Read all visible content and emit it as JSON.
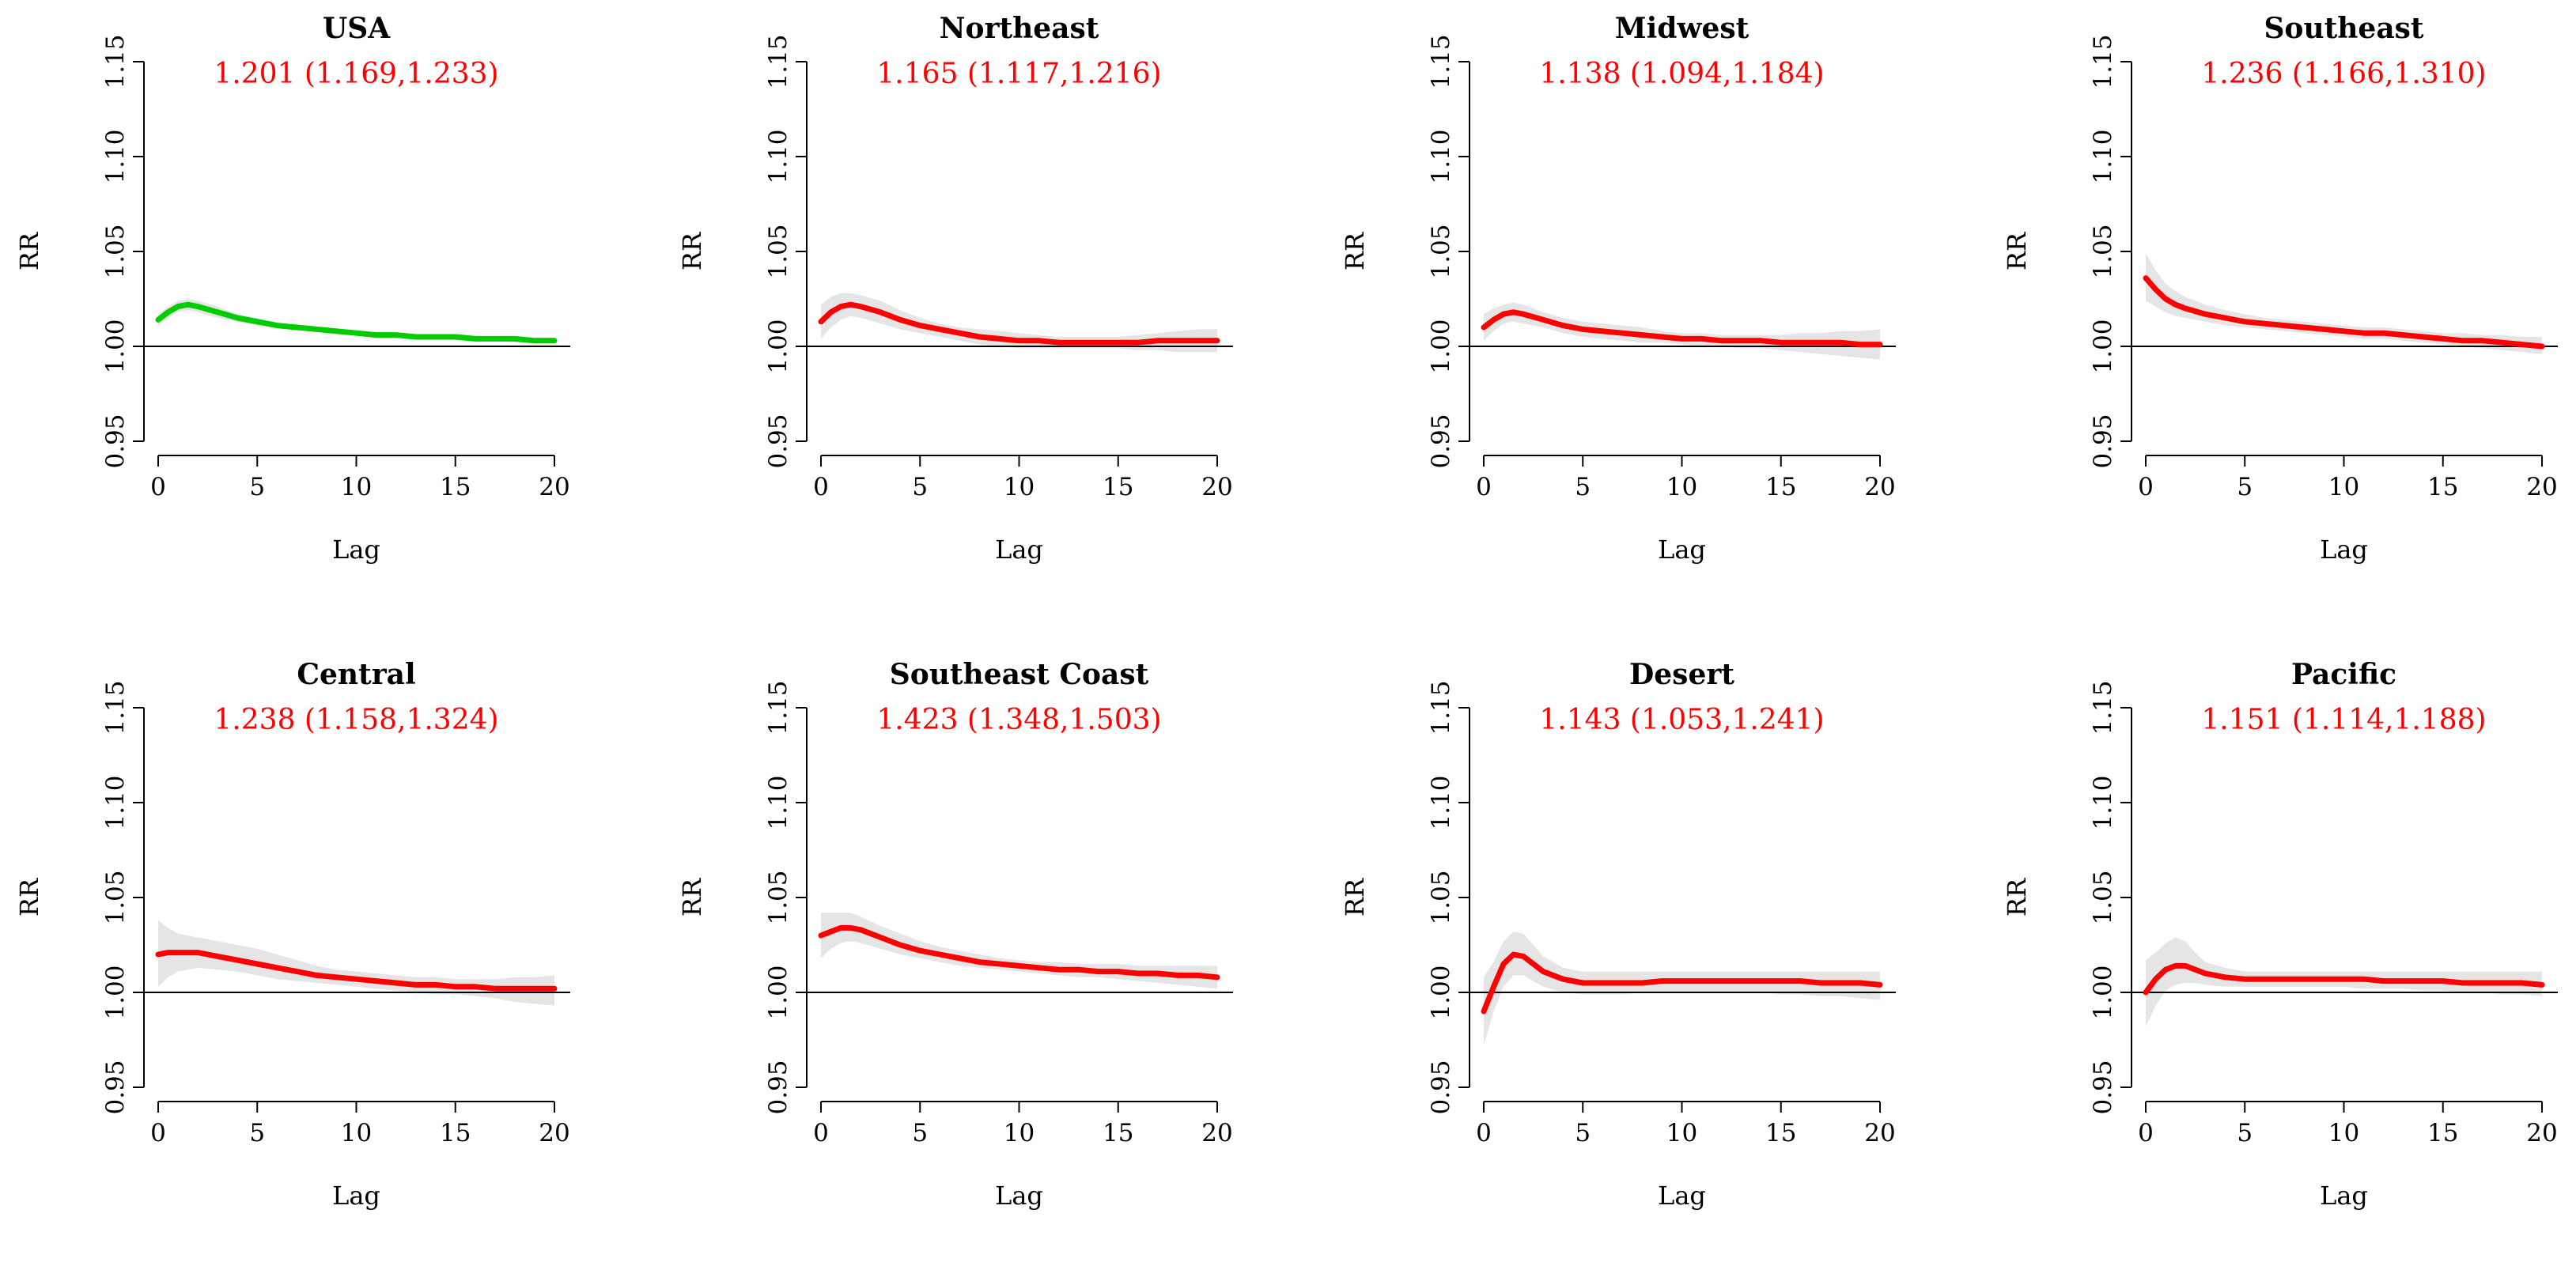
{
  "figure": {
    "background": "#ffffff",
    "band_color": "#e5e5e5",
    "stat_color": "#ff0000",
    "axis_color": "#000000"
  },
  "chart_data": [
    {
      "type": "line",
      "title": "USA",
      "annotation": "1.201 (1.169,1.233)",
      "xlabel": "Lag",
      "ylabel": "RR",
      "xlim": [
        0,
        20
      ],
      "ylim": [
        0.95,
        1.15
      ],
      "xticks": [
        "0",
        "5",
        "10",
        "15",
        "20"
      ],
      "yticks": [
        "0.95",
        "1.00",
        "1.05",
        "1.10",
        "1.15"
      ],
      "reference_line": 1.0,
      "series_color": "#00cc00",
      "x": [
        0,
        0.5,
        1,
        1.5,
        2,
        3,
        4,
        5,
        6,
        7,
        8,
        9,
        10,
        11,
        12,
        13,
        14,
        15,
        16,
        17,
        18,
        19,
        20
      ],
      "y": [
        1.014,
        1.018,
        1.021,
        1.022,
        1.021,
        1.018,
        1.015,
        1.013,
        1.011,
        1.01,
        1.009,
        1.008,
        1.007,
        1.006,
        1.006,
        1.005,
        1.005,
        1.005,
        1.004,
        1.004,
        1.004,
        1.003,
        1.003
      ],
      "lower": [
        1.011,
        1.015,
        1.018,
        1.019,
        1.018,
        1.015,
        1.013,
        1.011,
        1.01,
        1.009,
        1.008,
        1.007,
        1.006,
        1.005,
        1.005,
        1.004,
        1.004,
        1.004,
        1.003,
        1.003,
        1.002,
        1.002,
        1.002
      ],
      "upper": [
        1.017,
        1.021,
        1.024,
        1.025,
        1.024,
        1.021,
        1.017,
        1.015,
        1.012,
        1.011,
        1.01,
        1.009,
        1.008,
        1.007,
        1.007,
        1.006,
        1.006,
        1.006,
        1.005,
        1.005,
        1.005,
        1.004,
        1.004
      ]
    },
    {
      "type": "line",
      "title": "Northeast",
      "annotation": "1.165 (1.117,1.216)",
      "xlabel": "Lag",
      "ylabel": "RR",
      "xlim": [
        0,
        20
      ],
      "ylim": [
        0.95,
        1.15
      ],
      "xticks": [
        "0",
        "5",
        "10",
        "15",
        "20"
      ],
      "yticks": [
        "0.95",
        "1.00",
        "1.05",
        "1.10",
        "1.15"
      ],
      "reference_line": 1.0,
      "series_color": "#ff0000",
      "x": [
        0,
        0.5,
        1,
        1.5,
        2,
        3,
        4,
        5,
        6,
        7,
        8,
        9,
        10,
        11,
        12,
        13,
        14,
        15,
        16,
        17,
        18,
        19,
        20
      ],
      "y": [
        1.013,
        1.018,
        1.021,
        1.022,
        1.021,
        1.018,
        1.014,
        1.011,
        1.009,
        1.007,
        1.005,
        1.004,
        1.003,
        1.003,
        1.002,
        1.002,
        1.002,
        1.002,
        1.002,
        1.003,
        1.003,
        1.003,
        1.003
      ],
      "lower": [
        1.004,
        1.01,
        1.014,
        1.016,
        1.015,
        1.012,
        1.009,
        1.007,
        1.005,
        1.003,
        1.001,
        1.0,
        0.999,
        0.999,
        0.999,
        0.999,
        0.999,
        0.999,
        0.998,
        0.998,
        0.997,
        0.997,
        0.997
      ],
      "upper": [
        1.022,
        1.026,
        1.028,
        1.028,
        1.027,
        1.024,
        1.019,
        1.015,
        1.012,
        1.01,
        1.009,
        1.008,
        1.007,
        1.006,
        1.005,
        1.005,
        1.005,
        1.005,
        1.006,
        1.007,
        1.008,
        1.009,
        1.009
      ]
    },
    {
      "type": "line",
      "title": "Midwest",
      "annotation": "1.138 (1.094,1.184)",
      "xlabel": "Lag",
      "ylabel": "RR",
      "xlim": [
        0,
        20
      ],
      "ylim": [
        0.95,
        1.15
      ],
      "xticks": [
        "0",
        "5",
        "10",
        "15",
        "20"
      ],
      "yticks": [
        "0.95",
        "1.00",
        "1.05",
        "1.10",
        "1.15"
      ],
      "reference_line": 1.0,
      "series_color": "#ff0000",
      "x": [
        0,
        0.5,
        1,
        1.5,
        2,
        3,
        4,
        5,
        6,
        7,
        8,
        9,
        10,
        11,
        12,
        13,
        14,
        15,
        16,
        17,
        18,
        19,
        20
      ],
      "y": [
        1.01,
        1.014,
        1.017,
        1.018,
        1.017,
        1.014,
        1.011,
        1.009,
        1.008,
        1.007,
        1.006,
        1.005,
        1.004,
        1.004,
        1.003,
        1.003,
        1.003,
        1.002,
        1.002,
        1.002,
        1.002,
        1.001,
        1.001
      ],
      "lower": [
        1.003,
        1.008,
        1.012,
        1.013,
        1.012,
        1.01,
        1.007,
        1.005,
        1.004,
        1.003,
        1.002,
        1.002,
        1.001,
        1.0,
        1.0,
        0.999,
        0.999,
        0.998,
        0.997,
        0.996,
        0.995,
        0.994,
        0.993
      ],
      "upper": [
        1.017,
        1.02,
        1.022,
        1.023,
        1.022,
        1.018,
        1.015,
        1.013,
        1.012,
        1.011,
        1.01,
        1.008,
        1.007,
        1.007,
        1.006,
        1.006,
        1.006,
        1.006,
        1.007,
        1.007,
        1.008,
        1.008,
        1.009
      ]
    },
    {
      "type": "line",
      "title": "Southeast",
      "annotation": "1.236 (1.166,1.310)",
      "xlabel": "Lag",
      "ylabel": "RR",
      "xlim": [
        0,
        20
      ],
      "ylim": [
        0.95,
        1.15
      ],
      "xticks": [
        "0",
        "5",
        "10",
        "15",
        "20"
      ],
      "yticks": [
        "0.95",
        "1.00",
        "1.05",
        "1.10",
        "1.15"
      ],
      "reference_line": 1.0,
      "series_color": "#ff0000",
      "x": [
        0,
        0.5,
        1,
        1.5,
        2,
        3,
        4,
        5,
        6,
        7,
        8,
        9,
        10,
        11,
        12,
        13,
        14,
        15,
        16,
        17,
        18,
        19,
        20
      ],
      "y": [
        1.036,
        1.03,
        1.025,
        1.022,
        1.02,
        1.017,
        1.015,
        1.013,
        1.012,
        1.011,
        1.01,
        1.009,
        1.008,
        1.007,
        1.007,
        1.006,
        1.005,
        1.004,
        1.003,
        1.003,
        1.002,
        1.001,
        1.0
      ],
      "lower": [
        1.024,
        1.021,
        1.018,
        1.016,
        1.015,
        1.013,
        1.011,
        1.01,
        1.009,
        1.008,
        1.007,
        1.006,
        1.005,
        1.004,
        1.004,
        1.003,
        1.002,
        1.001,
        1.0,
        0.999,
        0.998,
        0.997,
        0.996
      ],
      "upper": [
        1.049,
        1.04,
        1.033,
        1.029,
        1.026,
        1.022,
        1.019,
        1.017,
        1.015,
        1.014,
        1.013,
        1.012,
        1.011,
        1.01,
        1.01,
        1.009,
        1.008,
        1.007,
        1.007,
        1.006,
        1.006,
        1.005,
        1.005
      ]
    },
    {
      "type": "line",
      "title": "Central",
      "annotation": "1.238 (1.158,1.324)",
      "xlabel": "Lag",
      "ylabel": "RR",
      "xlim": [
        0,
        20
      ],
      "ylim": [
        0.95,
        1.15
      ],
      "xticks": [
        "0",
        "5",
        "10",
        "15",
        "20"
      ],
      "yticks": [
        "0.95",
        "1.00",
        "1.05",
        "1.10",
        "1.15"
      ],
      "reference_line": 1.0,
      "series_color": "#ff0000",
      "x": [
        0,
        0.5,
        1,
        1.5,
        2,
        3,
        4,
        5,
        6,
        7,
        8,
        9,
        10,
        11,
        12,
        13,
        14,
        15,
        16,
        17,
        18,
        19,
        20
      ],
      "y": [
        1.02,
        1.021,
        1.021,
        1.021,
        1.021,
        1.019,
        1.017,
        1.015,
        1.013,
        1.011,
        1.009,
        1.008,
        1.007,
        1.006,
        1.005,
        1.004,
        1.004,
        1.003,
        1.003,
        1.002,
        1.002,
        1.002,
        1.002
      ],
      "lower": [
        1.003,
        1.008,
        1.011,
        1.012,
        1.013,
        1.012,
        1.011,
        1.009,
        1.007,
        1.006,
        1.005,
        1.004,
        1.003,
        1.002,
        1.001,
        1.0,
        0.999,
        0.999,
        0.998,
        0.997,
        0.995,
        0.994,
        0.993
      ],
      "upper": [
        1.038,
        1.034,
        1.031,
        1.03,
        1.029,
        1.027,
        1.025,
        1.023,
        1.02,
        1.017,
        1.014,
        1.012,
        1.011,
        1.01,
        1.009,
        1.008,
        1.008,
        1.007,
        1.007,
        1.007,
        1.008,
        1.008,
        1.009
      ]
    },
    {
      "type": "line",
      "title": "Southeast Coast",
      "annotation": "1.423 (1.348,1.503)",
      "xlabel": "Lag",
      "ylabel": "RR",
      "xlim": [
        0,
        20
      ],
      "ylim": [
        0.95,
        1.15
      ],
      "xticks": [
        "0",
        "5",
        "10",
        "15",
        "20"
      ],
      "yticks": [
        "0.95",
        "1.00",
        "1.05",
        "1.10",
        "1.15"
      ],
      "reference_line": 1.0,
      "series_color": "#ff0000",
      "x": [
        0,
        0.5,
        1,
        1.5,
        2,
        3,
        4,
        5,
        6,
        7,
        8,
        9,
        10,
        11,
        12,
        13,
        14,
        15,
        16,
        17,
        18,
        19,
        20
      ],
      "y": [
        1.03,
        1.032,
        1.034,
        1.034,
        1.033,
        1.029,
        1.025,
        1.022,
        1.02,
        1.018,
        1.016,
        1.015,
        1.014,
        1.013,
        1.012,
        1.012,
        1.011,
        1.011,
        1.01,
        1.01,
        1.009,
        1.009,
        1.008
      ],
      "lower": [
        1.018,
        1.023,
        1.026,
        1.027,
        1.026,
        1.023,
        1.02,
        1.018,
        1.016,
        1.014,
        1.013,
        1.012,
        1.011,
        1.01,
        1.009,
        1.008,
        1.008,
        1.007,
        1.006,
        1.005,
        1.004,
        1.003,
        1.002
      ],
      "upper": [
        1.042,
        1.042,
        1.042,
        1.042,
        1.04,
        1.035,
        1.031,
        1.027,
        1.024,
        1.022,
        1.02,
        1.018,
        1.017,
        1.016,
        1.016,
        1.015,
        1.015,
        1.015,
        1.014,
        1.014,
        1.014,
        1.014,
        1.014
      ]
    },
    {
      "type": "line",
      "title": "Desert",
      "annotation": "1.143 (1.053,1.241)",
      "xlabel": "Lag",
      "ylabel": "RR",
      "xlim": [
        0,
        20
      ],
      "ylim": [
        0.95,
        1.15
      ],
      "xticks": [
        "0",
        "5",
        "10",
        "15",
        "20"
      ],
      "yticks": [
        "0.95",
        "1.00",
        "1.05",
        "1.10",
        "1.15"
      ],
      "reference_line": 1.0,
      "series_color": "#ff0000",
      "x": [
        0,
        0.5,
        1,
        1.5,
        2,
        2.5,
        3,
        4,
        5,
        6,
        7,
        8,
        9,
        10,
        11,
        12,
        13,
        14,
        15,
        16,
        17,
        18,
        19,
        20
      ],
      "y": [
        0.99,
        1.003,
        1.015,
        1.02,
        1.019,
        1.015,
        1.011,
        1.007,
        1.005,
        1.005,
        1.005,
        1.005,
        1.006,
        1.006,
        1.006,
        1.006,
        1.006,
        1.006,
        1.006,
        1.006,
        1.005,
        1.005,
        1.005,
        1.004
      ],
      "lower": [
        0.972,
        0.99,
        1.003,
        1.009,
        1.009,
        1.006,
        1.003,
        1.0,
        0.999,
        0.999,
        0.999,
        1.0,
        1.0,
        1.0,
        1.0,
        1.0,
        1.0,
        1.0,
        0.999,
        0.999,
        0.998,
        0.998,
        0.997,
        0.996
      ],
      "upper": [
        1.008,
        1.016,
        1.027,
        1.032,
        1.031,
        1.025,
        1.019,
        1.013,
        1.011,
        1.011,
        1.011,
        1.011,
        1.011,
        1.011,
        1.011,
        1.011,
        1.011,
        1.011,
        1.011,
        1.011,
        1.011,
        1.011,
        1.011,
        1.011
      ]
    },
    {
      "type": "line",
      "title": "Pacific",
      "annotation": "1.151 (1.114,1.188)",
      "xlabel": "Lag",
      "ylabel": "RR",
      "xlim": [
        0,
        20
      ],
      "ylim": [
        0.95,
        1.15
      ],
      "xticks": [
        "0",
        "5",
        "10",
        "15",
        "20"
      ],
      "yticks": [
        "0.95",
        "1.00",
        "1.05",
        "1.10",
        "1.15"
      ],
      "reference_line": 1.0,
      "series_color": "#ff0000",
      "x": [
        0,
        0.5,
        1,
        1.5,
        2,
        2.5,
        3,
        4,
        5,
        6,
        7,
        8,
        9,
        10,
        11,
        12,
        13,
        14,
        15,
        16,
        17,
        18,
        19,
        20
      ],
      "y": [
        1.0,
        1.007,
        1.012,
        1.014,
        1.014,
        1.012,
        1.01,
        1.008,
        1.007,
        1.007,
        1.007,
        1.007,
        1.007,
        1.007,
        1.007,
        1.006,
        1.006,
        1.006,
        1.006,
        1.005,
        1.005,
        1.005,
        1.005,
        1.004
      ],
      "lower": [
        0.982,
        0.993,
        1.001,
        1.004,
        1.005,
        1.005,
        1.004,
        1.003,
        1.003,
        1.003,
        1.003,
        1.003,
        1.003,
        1.003,
        1.002,
        1.002,
        1.002,
        1.001,
        1.001,
        1.0,
        1.0,
        0.999,
        0.999,
        0.998
      ],
      "upper": [
        1.017,
        1.021,
        1.026,
        1.029,
        1.027,
        1.021,
        1.016,
        1.013,
        1.011,
        1.011,
        1.011,
        1.011,
        1.011,
        1.011,
        1.011,
        1.011,
        1.011,
        1.011,
        1.011,
        1.011,
        1.011,
        1.011,
        1.011,
        1.011
      ]
    }
  ]
}
